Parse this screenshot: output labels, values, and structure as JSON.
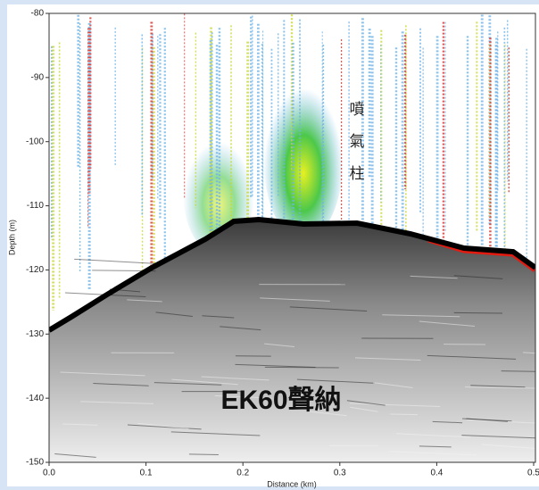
{
  "chart_data": {
    "type": "echogram",
    "xlabel": "Distance (km)",
    "ylabel": "Depth (m)",
    "xlim": [
      0,
      0.5
    ],
    "ylim": [
      -150,
      -80
    ],
    "xticks": [
      {
        "value": 0,
        "label": "0.0"
      },
      0.1,
      0.2,
      0.3,
      0.4,
      0.5
    ],
    "yticks": [
      -150,
      -140,
      -130,
      -120,
      -110,
      -100,
      -90,
      -80
    ],
    "annotations": [
      "噴\n氣\n柱",
      "EK60聲納"
    ]
  }
}
